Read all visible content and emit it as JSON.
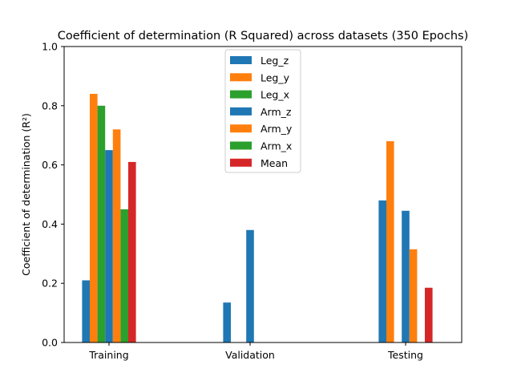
{
  "chart_data": {
    "type": "bar",
    "title": "Coefficient of determination (R Squared) across datasets (350 Epochs)",
    "xlabel": "",
    "ylabel": "Coefficient of determination (R²)",
    "ylim": [
      0,
      1.0
    ],
    "yticks": [
      "0.0",
      "0.2",
      "0.4",
      "0.6",
      "0.8",
      "1.0"
    ],
    "categories": [
      "Training",
      "Validation",
      "Testing"
    ],
    "grid": false,
    "legend_position": "top-center",
    "series": [
      {
        "name": "Leg_z",
        "color": "#1f77b4",
        "values": [
          0.21,
          0.135,
          0.48
        ]
      },
      {
        "name": "Leg_y",
        "color": "#ff7f0e",
        "values": [
          0.84,
          0.0,
          0.68
        ]
      },
      {
        "name": "Leg_x",
        "color": "#2ca02c",
        "values": [
          0.8,
          0.0,
          0.0
        ]
      },
      {
        "name": "Arm_z",
        "color": "#1f77b4",
        "values": [
          0.65,
          0.38,
          0.445
        ]
      },
      {
        "name": "Arm_y",
        "color": "#ff7f0e",
        "values": [
          0.72,
          0.0,
          0.315
        ]
      },
      {
        "name": "Arm_x",
        "color": "#2ca02c",
        "values": [
          0.45,
          0.0,
          0.0
        ]
      },
      {
        "name": "Mean",
        "color": "#d62728",
        "values": [
          0.61,
          0.0,
          0.185
        ]
      }
    ]
  }
}
